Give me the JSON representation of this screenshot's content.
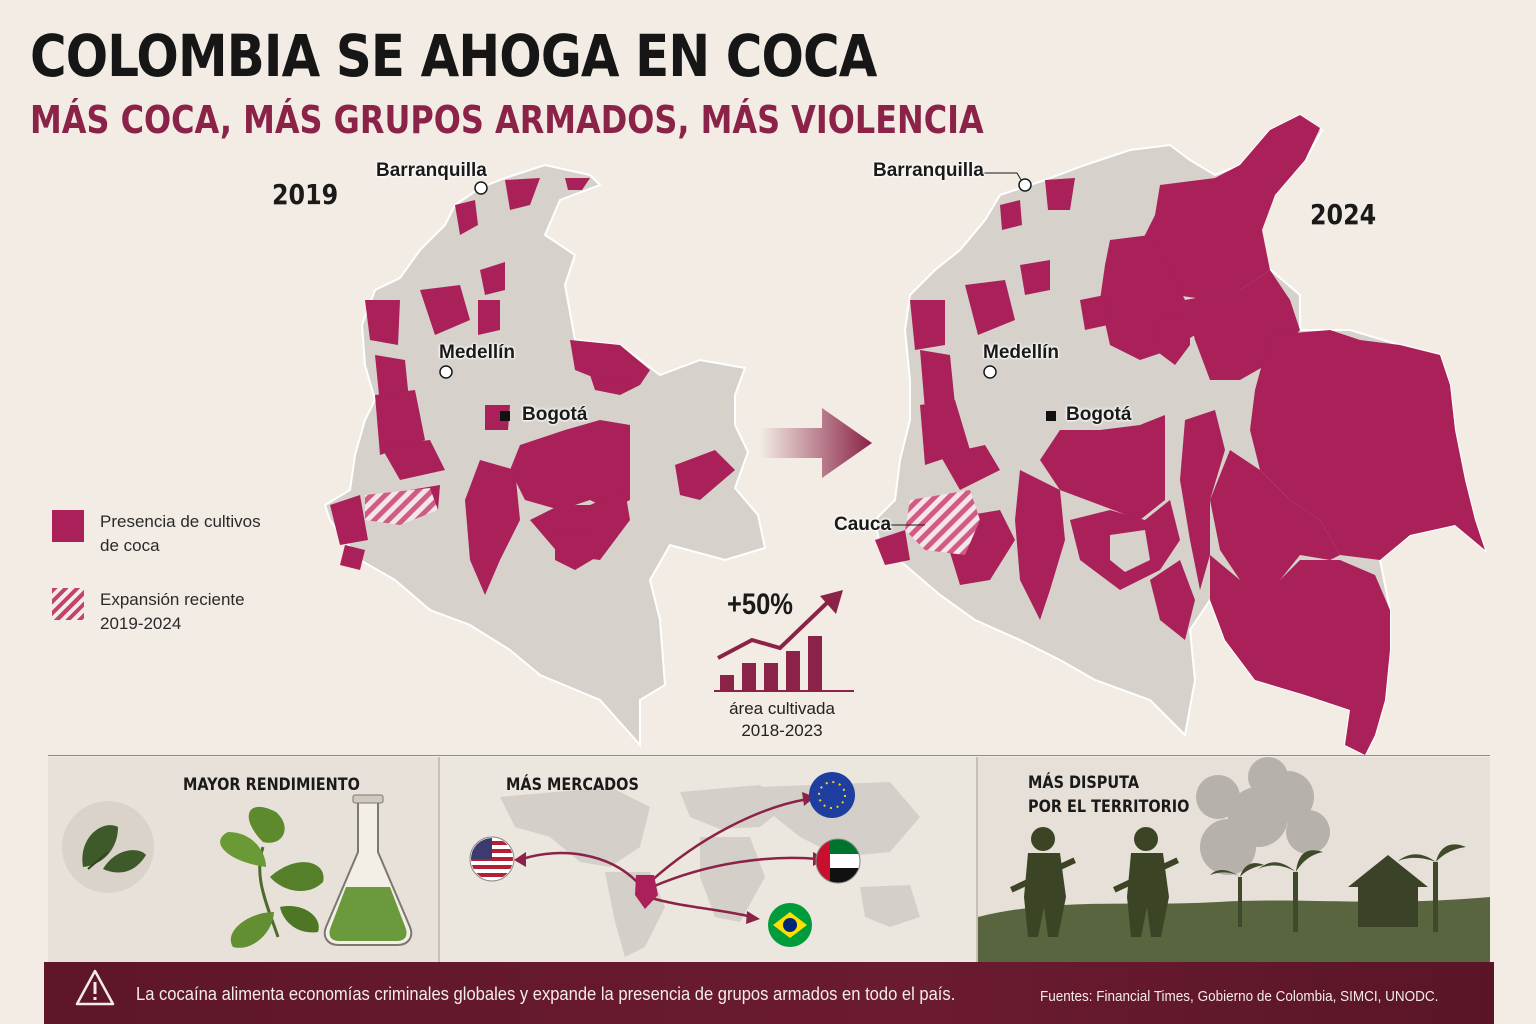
{
  "title": "COLOMBIA SE AHOGA EN COCA",
  "subtitle": "MÁS COCA, MÁS GRUPOS ARMADOS, MÁS VIOLENCIA",
  "maps": {
    "left": {
      "year": "2019",
      "cities": {
        "barranquilla": "Barranquilla",
        "medellin": "Medellín",
        "bogota": "Bogotá"
      }
    },
    "right": {
      "year": "2024",
      "cities": {
        "barranquilla": "Barranquilla",
        "medellin": "Medellín",
        "bogota": "Bogotá",
        "cauca": "Cauca"
      }
    }
  },
  "legend": {
    "presence": "Presencia de cultivos de coca",
    "expansion": "Expansión reciente 2019-2024"
  },
  "stat": {
    "value": "+50%",
    "caption": "área cultivada 2018-2023",
    "bars": [
      0.25,
      0.45,
      0.45,
      0.65,
      0.9
    ]
  },
  "panels": {
    "yield": {
      "title": "MAYOR RENDIMIENTO"
    },
    "markets": {
      "title": "MÁS MERCADOS",
      "flags": [
        "usa-flag",
        "eu-flag",
        "uae-flag",
        "brazil-flag"
      ]
    },
    "territory": {
      "title_line1": "MÁS DISPUTA",
      "title_line2": "POR EL TERRITORIO"
    }
  },
  "footer": {
    "message": "La cocaína alimenta economías criminales globales y expande la presencia de grupos armados en todo el país.",
    "sources": "Fuentes: Financial Times, Gobierno de Colombia, SIMCI, UNODC."
  },
  "colors": {
    "coca": "#a92158",
    "territory": "#d6d1cb",
    "accent": "#8a2347",
    "footer": "#651a2e"
  }
}
